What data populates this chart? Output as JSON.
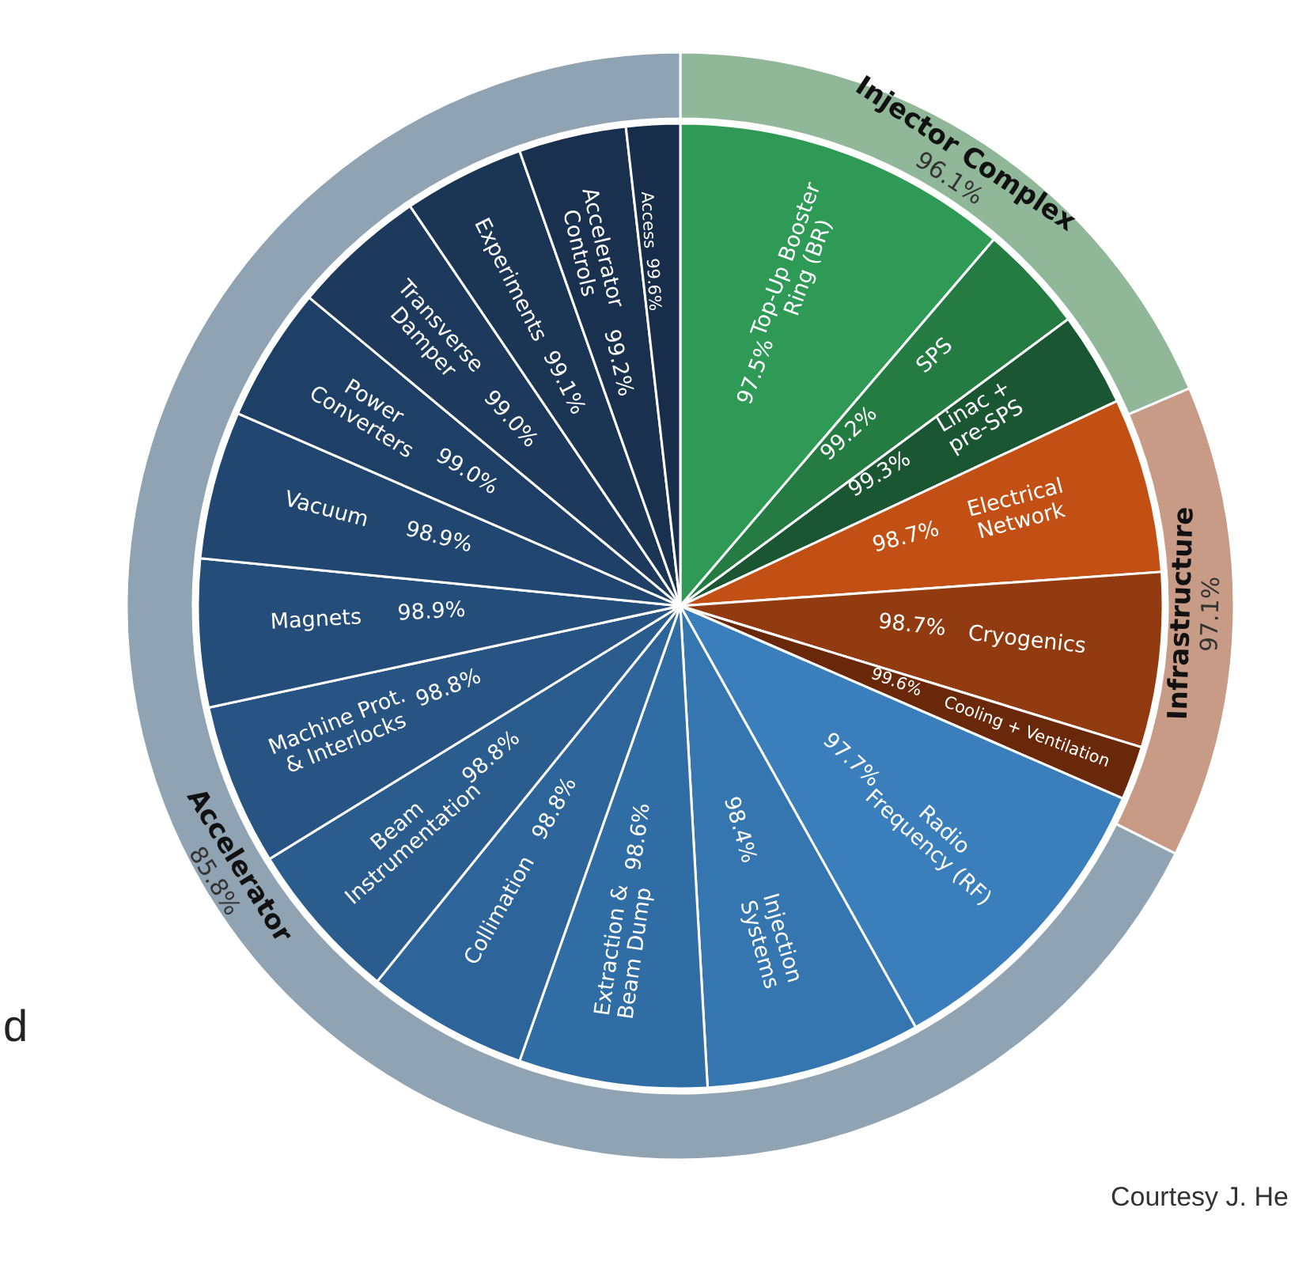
{
  "chart_data": [
    {
      "type": "other",
      "categories": [
        "Top-Up Booster Ring (BR)",
        "SPS",
        "Linac + pre-SPS",
        "Electrical Network",
        "Cryogenics",
        "Cooling + Ventilation",
        "Radio Frequency (RF)",
        "Injection Systems",
        "Extraction & Beam Dump",
        "Collimation",
        "Beam Instrumentation",
        "Machine Prot. & Interlocks",
        "Magnets",
        "Vacuum",
        "Power Converters",
        "Transverse Damper",
        "Experiments",
        "Accelerator Controls",
        "Access"
      ],
      "values": [
        97.5,
        99.2,
        99.3,
        98.7,
        98.7,
        99.6,
        97.7,
        98.4,
        98.6,
        98.8,
        98.8,
        98.8,
        98.9,
        98.9,
        99.0,
        99.0,
        99.1,
        99.2,
        99.6
      ],
      "value_labels": [
        "97.5%",
        "99.2%",
        "99.3%",
        "98.7%",
        "98.7%",
        "99.6%",
        "97.7%",
        "98.4%",
        "98.6%",
        "98.8%",
        "98.8%",
        "98.8%",
        "98.9%",
        "98.9%",
        "99.0%",
        "99.0%",
        "99.1%",
        "99.2%",
        "99.6%"
      ],
      "colors": [
        "#2f9a55",
        "#247c43",
        "#1a5632",
        "#c24f14",
        "#923b10",
        "#6a280b",
        "#3a7fbc",
        "#3576b0",
        "#316da5",
        "#2d6499",
        "#2a5c8e",
        "#275483",
        "#244d79",
        "#21466f",
        "#1f4066",
        "#1d3a5d",
        "#1b3555",
        "#19314f",
        "#172d49"
      ],
      "annotations": [
        "Courtesy J. He",
        "d"
      ]
    },
    {
      "type": "other",
      "categories": [
        "Injector Complex",
        "Infrastructure",
        "Accelerator"
      ],
      "values": [
        96.1,
        97.1,
        85.8
      ],
      "value_labels": [
        "96.1%",
        "97.1%",
        "85.8%"
      ],
      "colors": [
        "#90b898",
        "#c79b86",
        "#8fa3b2"
      ]
    }
  ]
}
